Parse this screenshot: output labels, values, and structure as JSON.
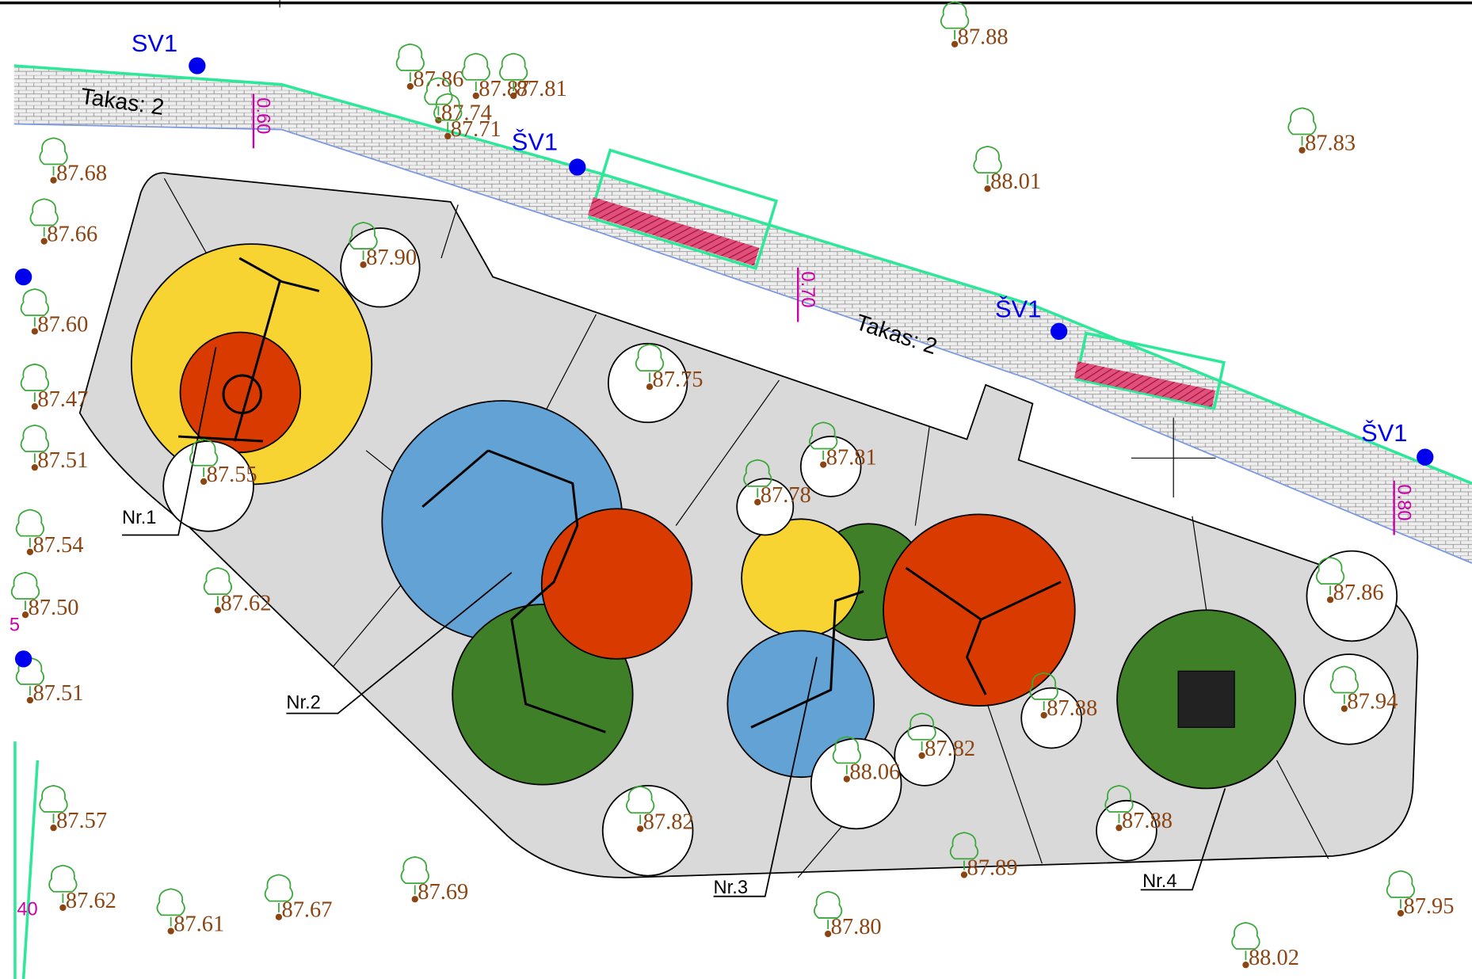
{
  "sv_labels": [
    "SV1",
    "ŠV1",
    "ŠV1",
    "ŠV1"
  ],
  "path_labels": [
    "Takas: 2",
    "Takas: 2"
  ],
  "path_widths": [
    "0.60",
    "0.70",
    "0.80"
  ],
  "zones": [
    "Nr.1",
    "Nr.2",
    "Nr.3",
    "Nr.4"
  ],
  "edge_labels": [
    "5",
    "40"
  ],
  "elevations": [
    "87.88",
    "87.86",
    "87.87",
    "87.81",
    "87.74",
    "87.71",
    "87.83",
    "88.01",
    "87.68",
    "87.66",
    "87.90",
    "87.60",
    "87.47",
    "87.51",
    "87.75",
    "87.55",
    "87.81",
    "87.78",
    "87.54",
    "87.86",
    "87.62",
    "87.50",
    "87.94",
    "87.51",
    "87.88",
    "87.82",
    "88.06",
    "87.57",
    "87.82",
    "87.88",
    "87.89",
    "87.69",
    "87.62",
    "87.67",
    "87.61",
    "87.80",
    "87.95",
    "88.02"
  ]
}
